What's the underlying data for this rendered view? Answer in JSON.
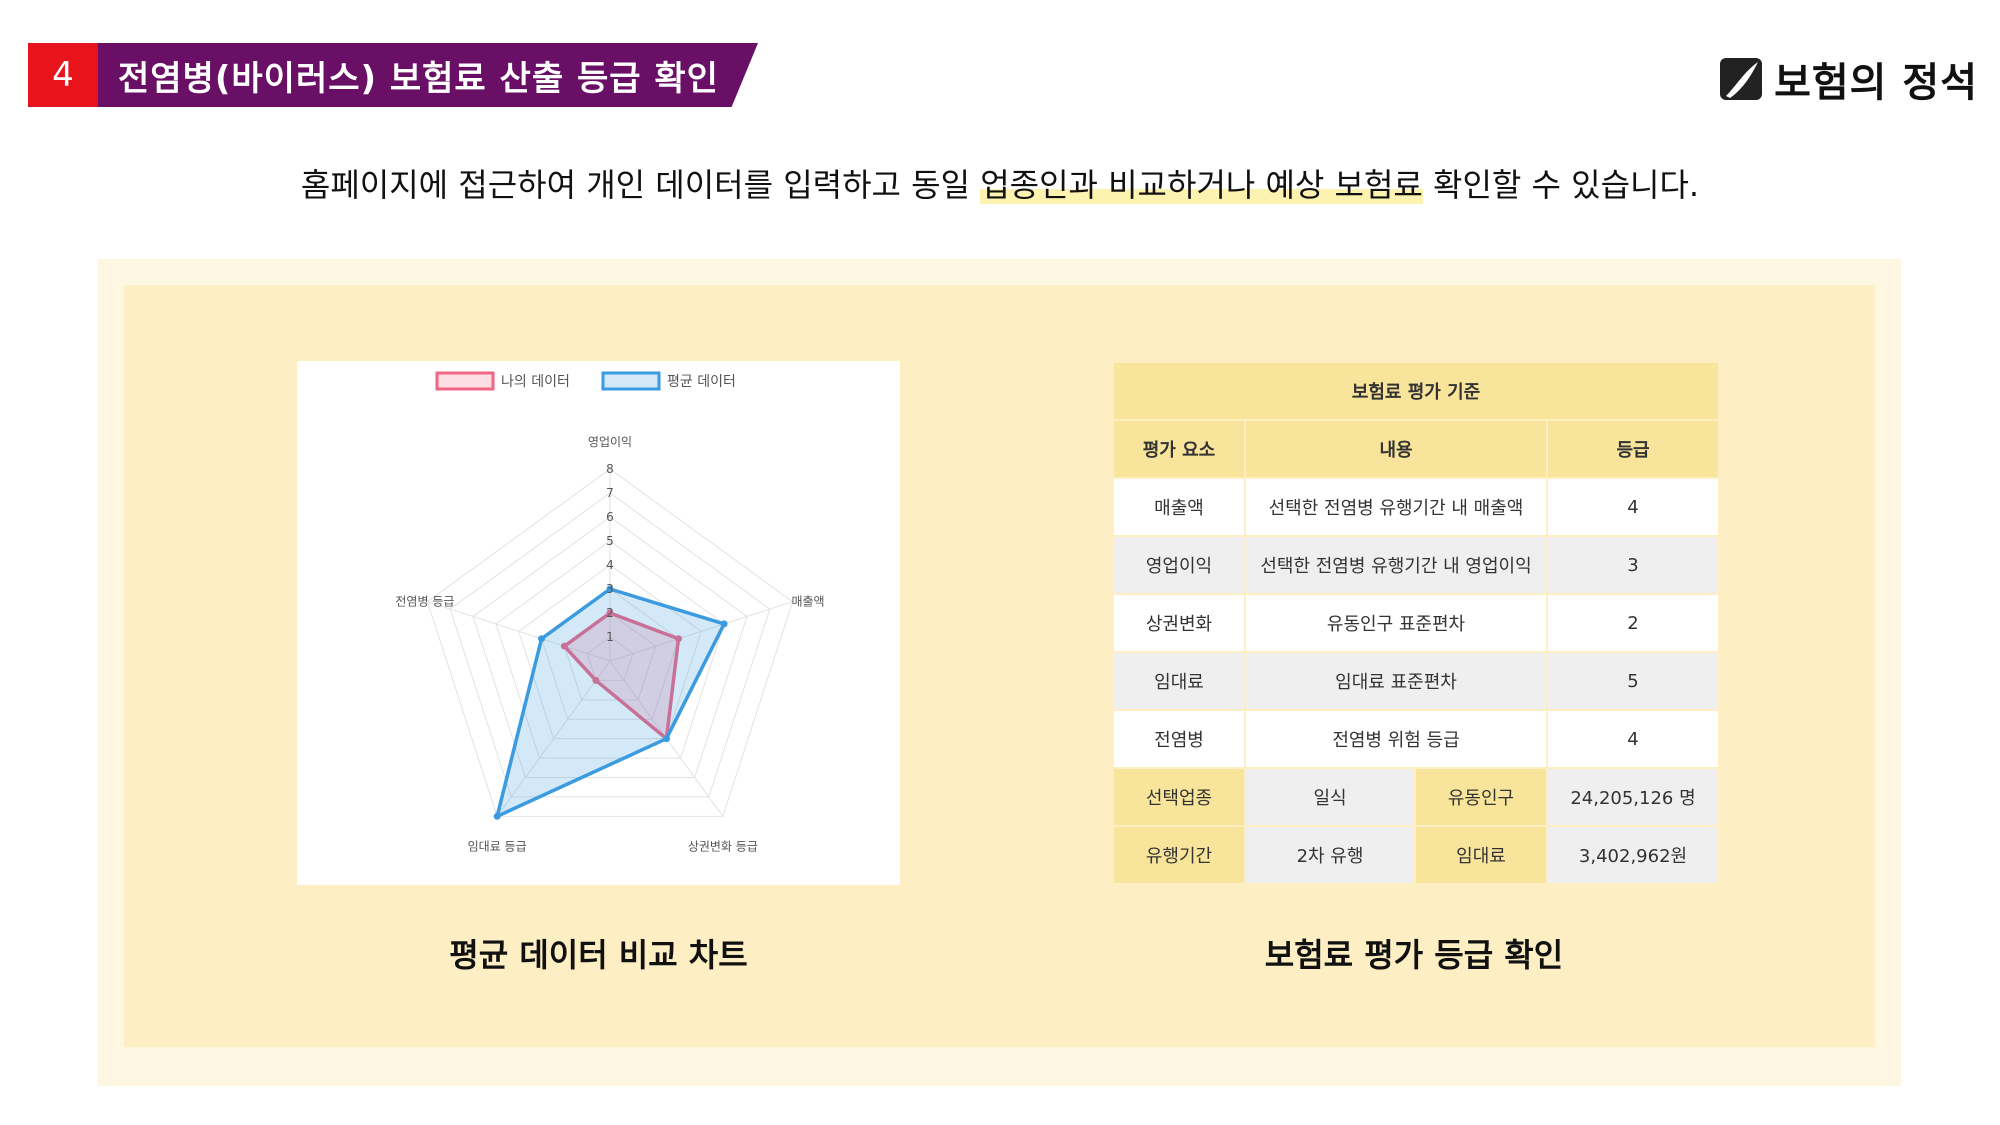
{
  "header": {
    "number": "4",
    "title": "전염병(바이러스) 보험료 산출 등급 확인",
    "logo_text": "보험의 정석"
  },
  "subtitle": {
    "before": "홈페이지에 접근하여 개인 데이터를 입력하고 동일 ",
    "highlight": "업종인과 비교하거나 예상 보험료",
    "after": " 확인할 수 있습니다."
  },
  "colors": {
    "accent_red": "#e8141c",
    "accent_purple": "#6a0f66",
    "panel_yellow": "#fdeec3",
    "series_my": "#f06684",
    "series_avg": "#3b9be0"
  },
  "chart_data": {
    "type": "radar",
    "categories": [
      "영업이익",
      "매출액",
      "상권변화 등급",
      "임대료 등급",
      "전염병 등급"
    ],
    "rmin": 0,
    "rmax": 8,
    "ticks": [
      1,
      2,
      3,
      4,
      5,
      6,
      7,
      8
    ],
    "series": [
      {
        "name": "나의 데이터",
        "values": [
          2,
          3,
          4,
          1,
          2
        ]
      },
      {
        "name": "평균 데이터",
        "values": [
          3,
          5,
          4,
          8,
          3
        ]
      }
    ]
  },
  "captions": {
    "chart": "평균 데이터 비교 차트",
    "table": "보험료 평가 등급 확인"
  },
  "table": {
    "title": "보험료 평가 기준",
    "headers": [
      "평가 요소",
      "내용",
      "등급"
    ],
    "rows": [
      {
        "factor": "매출액",
        "content": "선택한 전염병 유행기간 내 매출액",
        "grade": "4"
      },
      {
        "factor": "영업이익",
        "content": "선택한 전염병 유행기간 내 영업이익",
        "grade": "3"
      },
      {
        "factor": "상권변화",
        "content": "유동인구 표준편차",
        "grade": "2"
      },
      {
        "factor": "임대료",
        "content": "임대료 표준편차",
        "grade": "5"
      },
      {
        "factor": "전염병",
        "content": "전염병 위험 등급",
        "grade": "4"
      }
    ],
    "info": [
      {
        "label1": "선택업종",
        "value1": "일식",
        "label2": "유동인구",
        "value2": "24,205,126 명"
      },
      {
        "label1": "유행기간",
        "value1": "2차 유행",
        "label2": "임대료",
        "value2": "3,402,962원"
      }
    ]
  }
}
